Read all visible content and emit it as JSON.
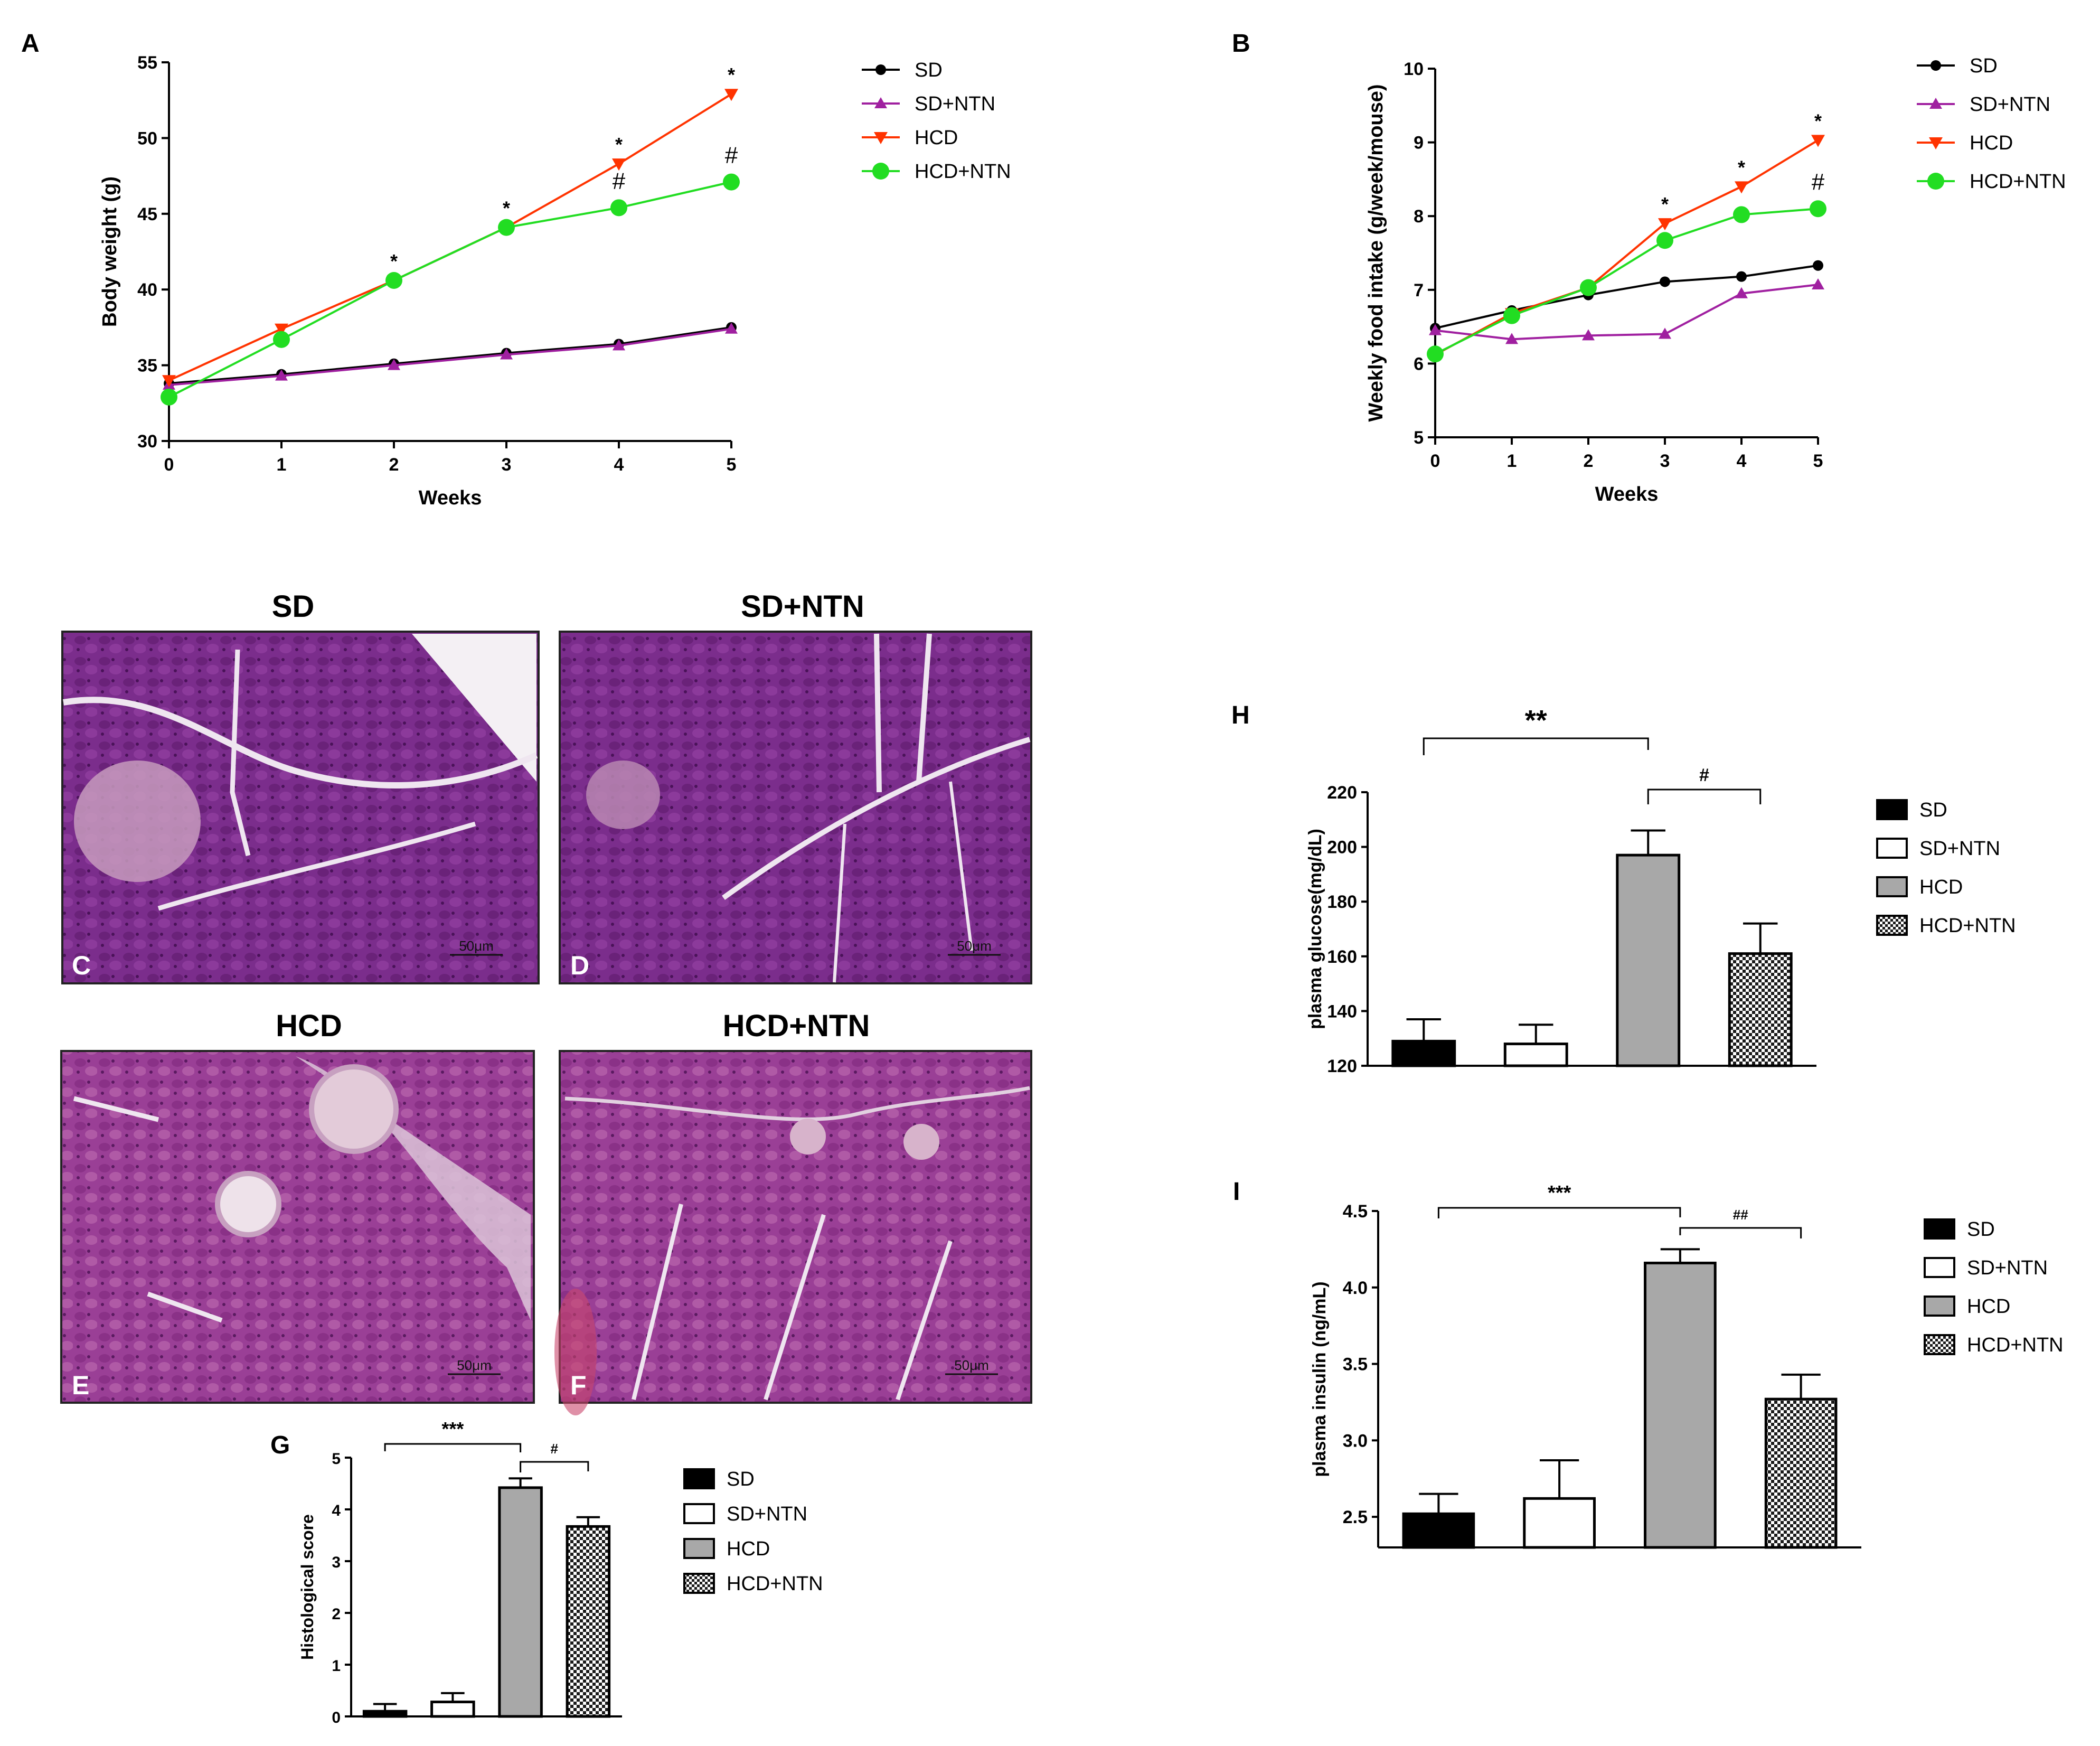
{
  "colors": {
    "SD": "#000000",
    "SD+NTN": "#a020a0",
    "HCD": "#ff3300",
    "HCD+NTN": "#22dd22",
    "bar_SD": "#000000",
    "bar_SD+NTN": "#ffffff",
    "bar_HCD": "#a8a8a8",
    "tissue": "#7a2f8a"
  },
  "histology": {
    "panels": [
      {
        "title": "SD",
        "letter": "C",
        "scale": "50μm"
      },
      {
        "title": "SD+NTN",
        "letter": "D",
        "scale": "50μm"
      },
      {
        "title": "HCD",
        "letter": "E",
        "scale": "50μm"
      },
      {
        "title": "HCD+NTN",
        "letter": "F",
        "scale": "50μm"
      }
    ]
  },
  "chart_data": [
    {
      "id": "A",
      "type": "line",
      "title": "",
      "xlabel": "Weeks",
      "ylabel": "Body weight (g)",
      "x": [
        0,
        1,
        2,
        3,
        4,
        5
      ],
      "xlim": [
        0,
        5
      ],
      "ylim": [
        30,
        55
      ],
      "yticks": [
        30,
        35,
        40,
        45,
        50,
        55
      ],
      "series": [
        {
          "name": "SD",
          "marker": "circle",
          "values": [
            33.8,
            34.4,
            35.1,
            35.8,
            36.4,
            37.5
          ]
        },
        {
          "name": "SD+NTN",
          "marker": "triangle-up",
          "values": [
            33.7,
            34.3,
            35.0,
            35.7,
            36.3,
            37.4
          ]
        },
        {
          "name": "HCD",
          "marker": "triangle-down",
          "values": [
            34.0,
            37.4,
            40.6,
            44.1,
            48.3,
            52.9
          ]
        },
        {
          "name": "HCD+NTN",
          "marker": "circle-large",
          "values": [
            32.9,
            36.7,
            40.6,
            44.1,
            45.4,
            47.1
          ]
        }
      ],
      "annotations": [
        {
          "x": 2,
          "y": 40.6,
          "text": "*"
        },
        {
          "x": 3,
          "y": 44.1,
          "text": "*"
        },
        {
          "x": 4,
          "y": 48.3,
          "text": "*"
        },
        {
          "x": 4,
          "y": 45.4,
          "text": "#"
        },
        {
          "x": 5,
          "y": 52.9,
          "text": "*"
        },
        {
          "x": 5,
          "y": 47.1,
          "text": "#"
        }
      ],
      "legend": "top-right"
    },
    {
      "id": "B",
      "type": "line",
      "title": "",
      "xlabel": "Weeks",
      "ylabel": "Weekly food intake (g/week/mouse)",
      "x": [
        0,
        1,
        2,
        3,
        4,
        5
      ],
      "xlim": [
        0,
        5
      ],
      "ylim": [
        5,
        10
      ],
      "yticks": [
        5,
        6,
        7,
        8,
        9,
        10
      ],
      "series": [
        {
          "name": "SD",
          "marker": "circle",
          "values": [
            6.48,
            6.72,
            6.93,
            7.11,
            7.18,
            7.33
          ]
        },
        {
          "name": "SD+NTN",
          "marker": "triangle-up",
          "values": [
            6.45,
            6.33,
            6.38,
            6.4,
            6.95,
            7.07
          ]
        },
        {
          "name": "HCD",
          "marker": "triangle-down",
          "values": [
            6.12,
            6.68,
            7.03,
            7.9,
            8.4,
            9.03
          ]
        },
        {
          "name": "HCD+NTN",
          "marker": "circle-large",
          "values": [
            6.13,
            6.65,
            7.03,
            7.67,
            8.02,
            8.1
          ]
        }
      ],
      "annotations": [
        {
          "x": 3,
          "y": 7.9,
          "text": "*"
        },
        {
          "x": 4,
          "y": 8.4,
          "text": "*"
        },
        {
          "x": 5,
          "y": 9.03,
          "text": "*"
        },
        {
          "x": 5,
          "y": 8.1,
          "text": "#"
        }
      ],
      "legend": "top-right"
    },
    {
      "id": "G",
      "type": "bar",
      "title": "",
      "xlabel": "",
      "ylabel": "Histological score",
      "categories": [
        "SD",
        "SD+NTN",
        "HCD",
        "HCD+NTN"
      ],
      "values": [
        0.1,
        0.28,
        4.42,
        3.67
      ],
      "errors": [
        0.14,
        0.17,
        0.18,
        0.18
      ],
      "ylim": [
        0,
        5
      ],
      "yticks": [
        0,
        1,
        2,
        3,
        4,
        5
      ],
      "brackets": [
        {
          "from": 0,
          "to": 2,
          "text": "***"
        },
        {
          "from": 2,
          "to": 3,
          "text": "#"
        }
      ],
      "legend": "right"
    },
    {
      "id": "H",
      "type": "bar",
      "title": "",
      "xlabel": "",
      "ylabel": "plasma glucose(mg/dL)",
      "categories": [
        "SD",
        "SD+NTN",
        "HCD",
        "HCD+NTN"
      ],
      "values": [
        129,
        128,
        197,
        161
      ],
      "errors": [
        8,
        7,
        9,
        11
      ],
      "ylim": [
        120,
        220
      ],
      "yticks": [
        120,
        140,
        160,
        180,
        200,
        220
      ],
      "brackets": [
        {
          "from": 0,
          "to": 2,
          "text": "**"
        },
        {
          "from": 2,
          "to": 3,
          "text": "#"
        }
      ],
      "legend": "right"
    },
    {
      "id": "I",
      "type": "bar",
      "title": "",
      "xlabel": "",
      "ylabel": "plasma insulin (ng/mL)",
      "categories": [
        "SD",
        "SD+NTN",
        "HCD",
        "HCD+NTN"
      ],
      "values": [
        2.52,
        2.62,
        4.16,
        3.27
      ],
      "errors": [
        0.13,
        0.25,
        0.09,
        0.16
      ],
      "ylim": [
        2.3,
        4.5
      ],
      "yticks": [
        2.5,
        3.0,
        3.5,
        4.0,
        4.5
      ],
      "yticklabels": [
        "2.5",
        "3.0",
        "3.5",
        "4.0",
        "4.5"
      ],
      "brackets": [
        {
          "from": 0,
          "to": 2,
          "text": "***"
        },
        {
          "from": 2,
          "to": 3,
          "text": "##"
        }
      ],
      "legend": "right"
    }
  ]
}
